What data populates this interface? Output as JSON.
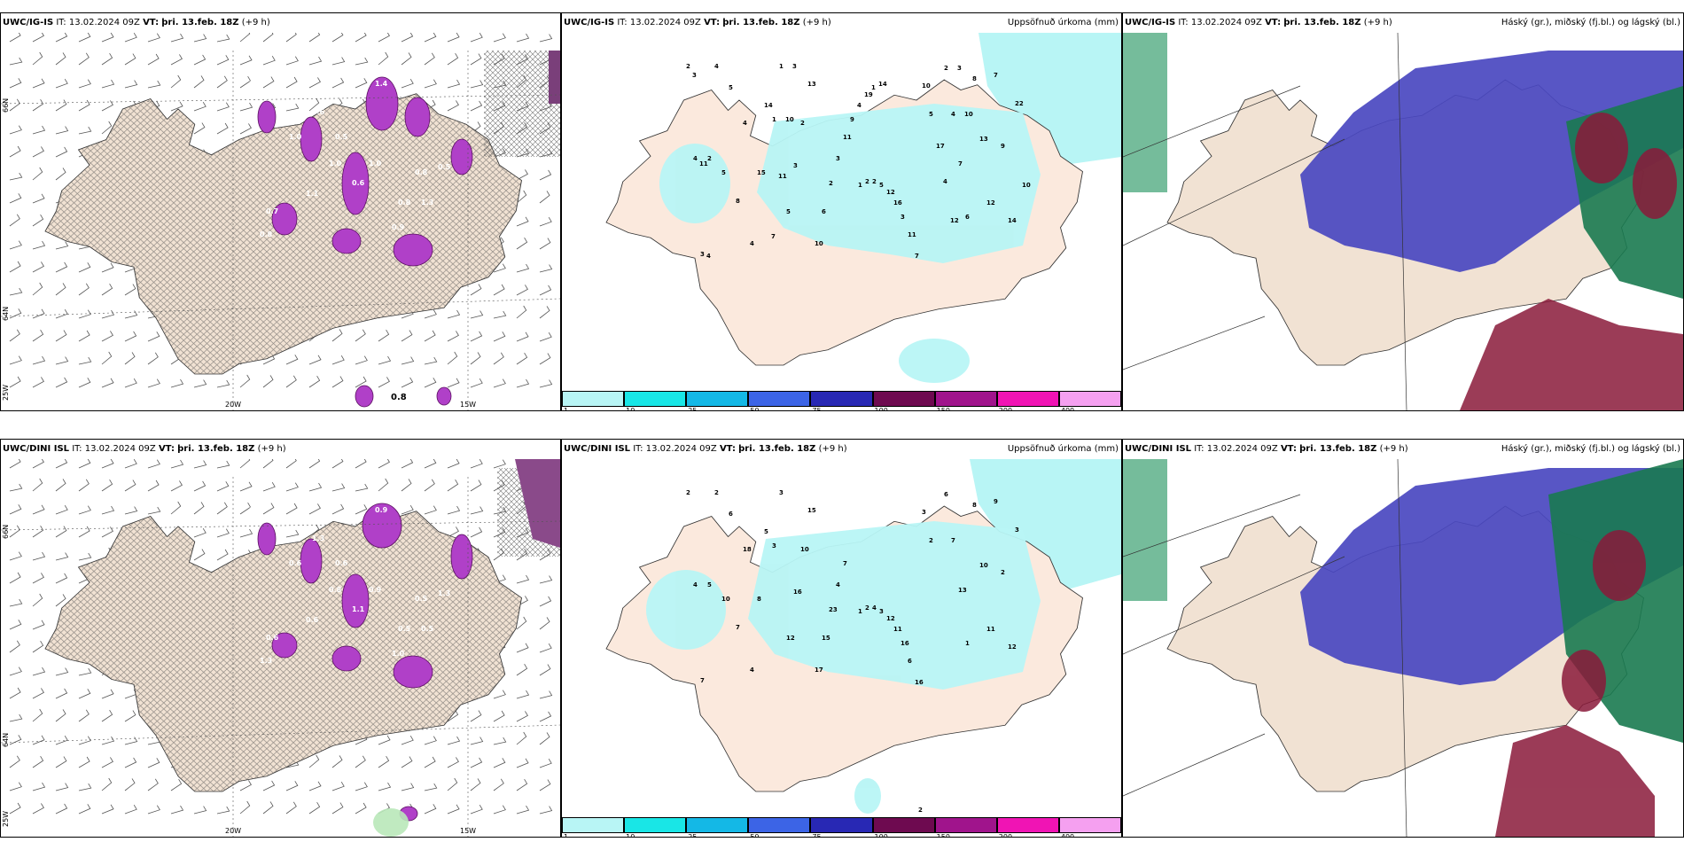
{
  "panels": [
    {
      "model": "UWC/IG-IS",
      "it": "IT: 13.02.2024 09Z",
      "vt_label": "VT:",
      "vt": "þri. 13.feb. 18Z",
      "lead": "(+9 h)",
      "right": ""
    },
    {
      "model": "UWC/IG-IS",
      "it": "IT: 13.02.2024 09Z",
      "vt_label": "VT:",
      "vt": "þri. 13.feb. 18Z",
      "lead": "(+9 h)",
      "right": "Uppsöfnuð úrkoma (mm)"
    },
    {
      "model": "UWC/IG-IS",
      "it": "IT: 13.02.2024 09Z",
      "vt_label": "VT:",
      "vt": "þri. 13.feb. 18Z",
      "lead": "(+9 h)",
      "right": "Háský (gr.), miðský (fj.bl.) og lágský (bl.)"
    },
    {
      "model": "UWC/DINI ISL",
      "it": "IT: 13.02.2024 09Z",
      "vt_label": "VT:",
      "vt": "þri. 13.feb. 18Z",
      "lead": "(+9 h)",
      "right": ""
    },
    {
      "model": "UWC/DINI ISL",
      "it": "IT: 13.02.2024 09Z",
      "vt_label": "VT:",
      "vt": "þri. 13.feb. 18Z",
      "lead": "(+9 h)",
      "right": "Uppsöfnuð úrkoma (mm)"
    },
    {
      "model": "UWC/DINI ISL",
      "it": "IT: 13.02.2024 09Z",
      "vt_label": "VT:",
      "vt": "þri. 13.feb. 18Z",
      "lead": "(+9 h)",
      "right": "Háský (gr.), miðský (fj.bl.) og lágský (bl.)"
    }
  ],
  "colorbar": {
    "ticks": [
      "1",
      "10",
      "25",
      "50",
      "75",
      "100",
      "150",
      "200",
      "400"
    ],
    "colors": [
      "#b8f5f5",
      "#19e6e6",
      "#14b8e6",
      "#3c64e6",
      "#2828b4",
      "#6e0a50",
      "#a0148c",
      "#f014b4",
      "#f5a0f0"
    ]
  },
  "axes": {
    "lon": [
      "20W",
      "15W"
    ],
    "lat": [
      "66N",
      "64N"
    ],
    "edge": [
      "25W"
    ]
  },
  "precip_top": [
    "2",
    "1",
    "1",
    "2",
    "4",
    "1",
    "2",
    "4",
    "3",
    "5",
    "2",
    "7",
    "2",
    "3",
    "5",
    "6",
    "4",
    "2",
    "12",
    "8",
    "5",
    "13",
    "16",
    "13",
    "5",
    "10",
    "3",
    "12",
    "8",
    "6",
    "11",
    "7",
    "4",
    "2",
    "7",
    "9",
    "4",
    "3",
    "10",
    "14",
    "15",
    "11",
    "5",
    "22",
    "14",
    "9",
    "17",
    "10",
    "7",
    "4",
    "4",
    "3",
    "11",
    "19",
    "12",
    "11",
    "10",
    "1",
    "3",
    "4",
    "3",
    "14",
    "10"
  ],
  "precip_bottom": [
    "2",
    "3",
    "1",
    "6",
    "4",
    "3",
    "2",
    "7",
    "7",
    "12",
    "4",
    "13",
    "5",
    "16",
    "3",
    "1",
    "2",
    "10",
    "12",
    "8",
    "10",
    "15",
    "11",
    "10",
    "6",
    "17",
    "16",
    "11",
    "7",
    "15",
    "6",
    "9",
    "18",
    "23",
    "16",
    "2",
    "4",
    "4",
    "3",
    "12",
    "8",
    "7",
    "2",
    "3",
    "5"
  ],
  "contour_top": [
    "0.6",
    "0.5",
    "1.3",
    "0.6",
    "0.8",
    "1.0",
    "1.4",
    "0.7",
    "0.6",
    "0.5",
    "1.0",
    "0.8",
    "1.1",
    "0.9",
    "0.6",
    "1.0",
    "0.8"
  ],
  "contour_bottom": [
    "0.8",
    "0.6",
    "0.5",
    "1.3",
    "0.5",
    "0.6",
    "0.9",
    "0.6",
    "1.1",
    "1.3",
    "0.8",
    "0.5",
    "0.6",
    "1.0",
    "0.3",
    "0.9",
    "1.3"
  ],
  "island_label_a": "0.8",
  "island_label_b": "0.6",
  "bottom_precip_label": "2"
}
